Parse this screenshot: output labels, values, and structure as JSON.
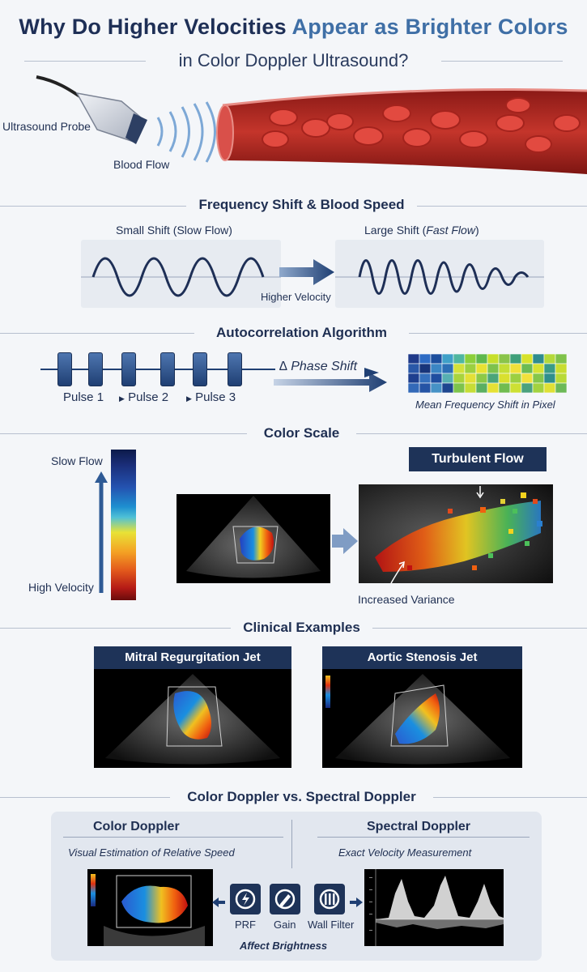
{
  "title": {
    "line1_part1": "Why Do Higher Velocities",
    "line1_part2": "Appear as Brighter Colors",
    "line2": "in Color Doppler Ultrasound?"
  },
  "probe_section": {
    "probe_label": "Ultrasound Probe",
    "flow_label": "Blood Flow"
  },
  "freq_section": {
    "heading": "Frequency Shift & Blood Speed",
    "small_shift": "Small Shift (Slow Flow)",
    "large_shift_prefix": "Large Shift (",
    "large_shift_italic": "Fast Flow",
    "large_shift_suffix": ")",
    "arrow_label": "Higher Velocity"
  },
  "auto_section": {
    "heading": "Autocorrelation Algorithm",
    "pulse1": "Pulse 1",
    "pulse2": "Pulse 2",
    "pulse3": "Pulse 3",
    "phase_label": "∆ Phase Shift",
    "pixel_label": "Mean Frequency Shift in Pixel"
  },
  "color_section": {
    "heading": "Color Scale",
    "slow_label": "Slow Flow",
    "high_label": "High Velocity",
    "turbulent_label": "Turbulent Flow",
    "variance_label": "Increased Variance"
  },
  "clinical_section": {
    "heading": "Clinical Examples",
    "mitral_label": "Mitral Regurgitation Jet",
    "aortic_label": "Aortic Stenosis Jet"
  },
  "compare_section": {
    "heading": "Color Doppler vs. Spectral Doppler",
    "color_title": "Color Doppler",
    "color_sub": "Visual Estimation of Relative Speed",
    "spectral_title": "Spectral Doppler",
    "spectral_sub": "Exact Velocity Measurement",
    "prf": "PRF",
    "gain": "Gain",
    "wall": "Wall Filter",
    "affect": "Affect Brightness"
  },
  "colors": {
    "navy": "#1e3358",
    "accent": "#3f6fa6",
    "vessel": "#b52a25"
  }
}
